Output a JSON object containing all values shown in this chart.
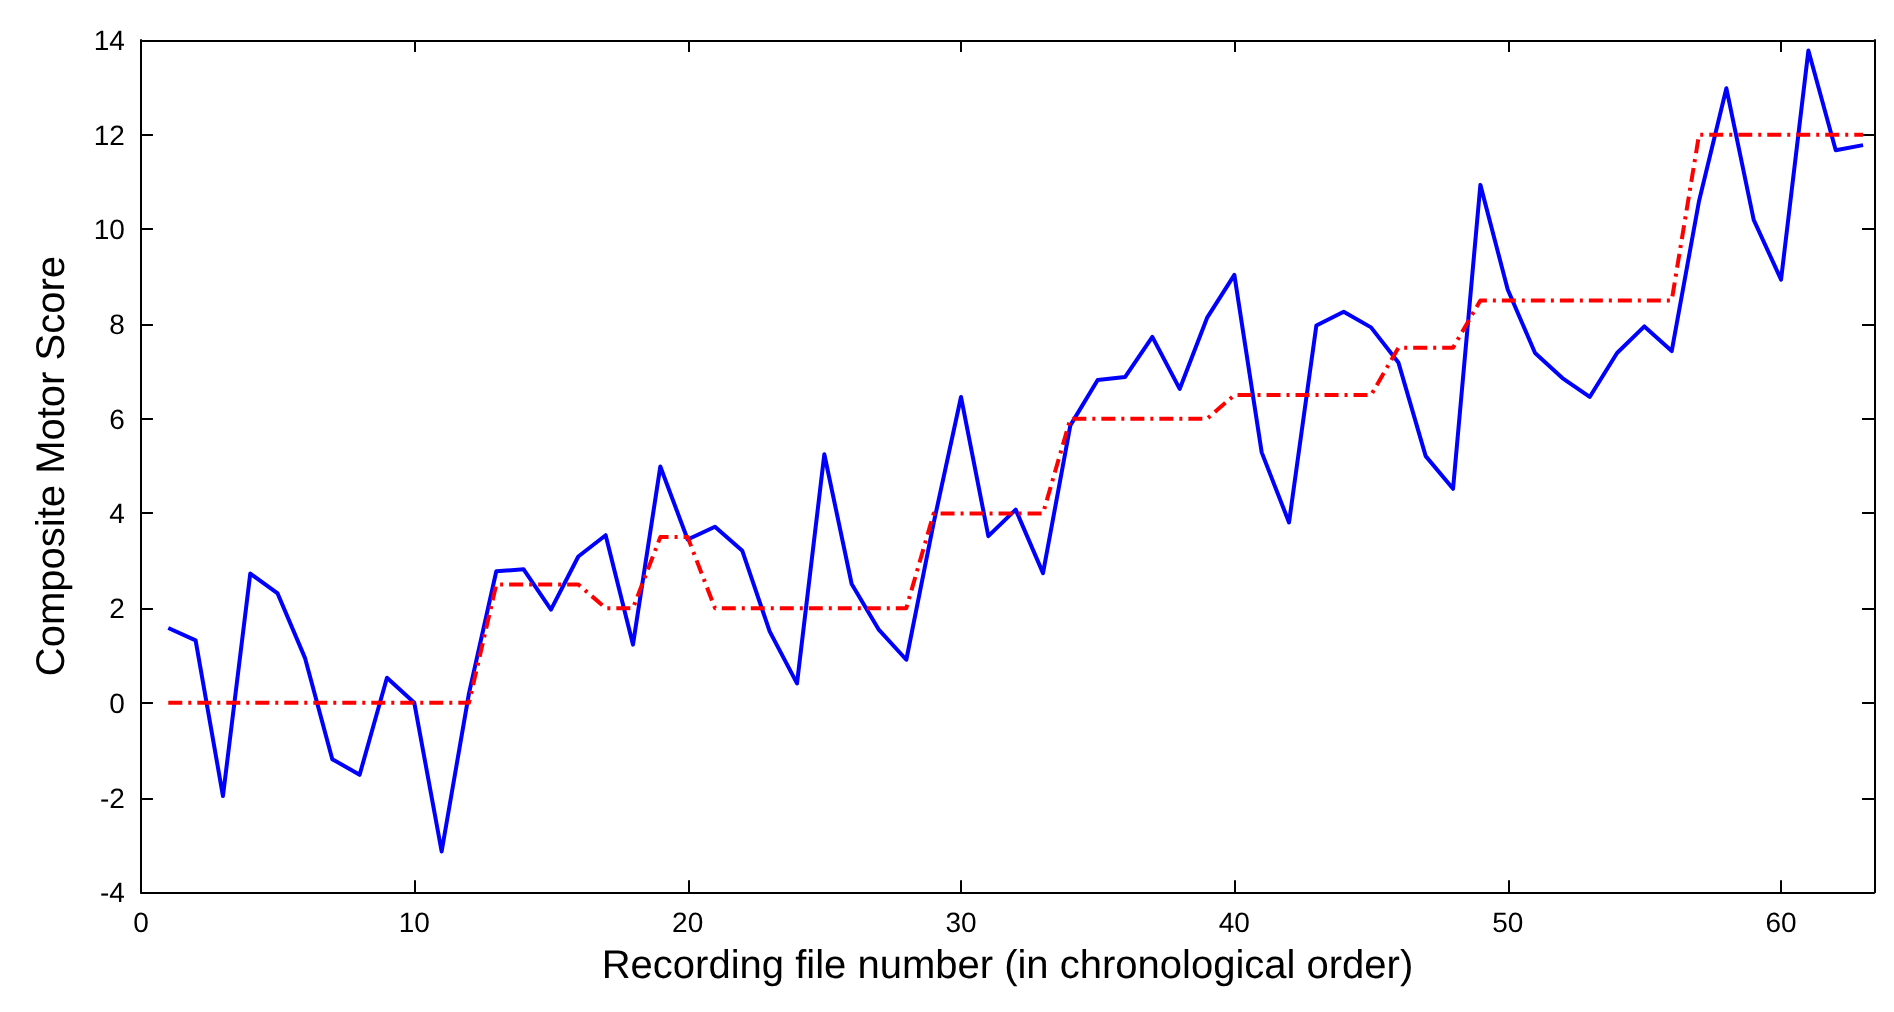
{
  "chart_data": {
    "type": "line",
    "xlabel": "Recording file number (in chronological order)",
    "ylabel": "Composite Motor Score",
    "x": [
      1,
      2,
      3,
      4,
      5,
      6,
      7,
      8,
      9,
      10,
      11,
      12,
      13,
      14,
      15,
      16,
      17,
      18,
      19,
      20,
      21,
      22,
      23,
      24,
      25,
      26,
      27,
      28,
      29,
      30,
      31,
      32,
      33,
      34,
      35,
      36,
      37,
      38,
      39,
      40,
      41,
      42,
      43,
      44,
      45,
      46,
      47,
      48,
      49,
      50,
      51,
      52,
      53,
      54,
      55,
      56,
      57,
      58,
      59,
      60,
      61,
      62,
      63
    ],
    "series": [
      {
        "color": "#0000ff",
        "line_style": "solid",
        "values": [
          1.58,
          1.32,
          -1.97,
          2.73,
          2.31,
          0.95,
          -1.19,
          -1.52,
          0.53,
          0,
          -3.14,
          0.2,
          2.78,
          2.82,
          1.97,
          3.09,
          3.54,
          1.23,
          4.99,
          3.45,
          3.72,
          3.21,
          1.51,
          0.41,
          5.25,
          2.51,
          1.54,
          0.91,
          3.8,
          6.46,
          3.52,
          4.08,
          2.74,
          5.86,
          6.82,
          6.88,
          7.73,
          6.63,
          8.13,
          9.04,
          5.29,
          3.81,
          7.97,
          8.26,
          7.93,
          7.19,
          5.21,
          4.52,
          10.94,
          8.73,
          7.39,
          6.86,
          6.46,
          7.39,
          7.95,
          7.43,
          10.6,
          12.98,
          10.2,
          8.94,
          13.78,
          11.67,
          11.78
        ]
      },
      {
        "color": "#ff0000",
        "line_style": "dashed",
        "values": [
          0,
          0,
          0,
          0,
          0,
          0,
          0,
          0,
          0,
          0,
          0,
          0,
          2.5,
          2.5,
          2.5,
          2.5,
          2,
          2,
          3.5,
          3.5,
          2,
          2,
          2,
          2,
          2,
          2,
          2,
          2,
          4,
          4,
          4,
          4,
          4,
          6,
          6,
          6,
          6,
          6,
          6,
          6.5,
          6.5,
          6.5,
          6.5,
          6.5,
          6.5,
          7.5,
          7.5,
          7.5,
          8.5,
          8.5,
          8.5,
          8.5,
          8.5,
          8.5,
          8.5,
          8.5,
          12,
          12,
          12,
          12,
          12,
          12,
          12
        ]
      }
    ],
    "xlim": [
      0,
      63.4
    ],
    "xticks": [
      0,
      10,
      20,
      30,
      40,
      50,
      60
    ],
    "ylim": [
      -4,
      14
    ],
    "yticks": [
      -4,
      -2,
      0,
      2,
      4,
      6,
      8,
      10,
      12,
      14
    ],
    "marker": "none"
  }
}
